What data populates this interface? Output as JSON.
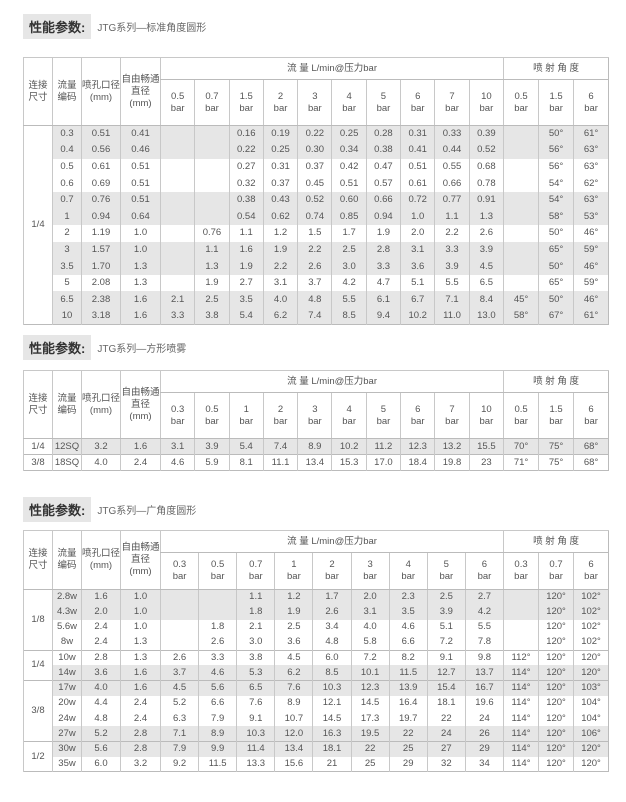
{
  "header_labels": {
    "conn": "连接尺寸",
    "code": "流量编码",
    "orifice": "喷孔口径(mm)",
    "free": "自由畅通直径(mm)",
    "flow": "流  量    L/min@压力bar",
    "angle": "喷 射 角 度",
    "unit": "bar"
  },
  "sections": [
    {
      "label": "性能参数:",
      "subtitle": "JTG系列—标准角度圆形",
      "flow_pressures": [
        "0.5",
        "0.7",
        "1.5",
        "2",
        "3",
        "4",
        "5",
        "6",
        "7",
        "10"
      ],
      "angle_pressures": [
        "0.5",
        "1.5",
        "6"
      ],
      "groups": [
        {
          "conn": "1/4",
          "rows": [
            {
              "shade": true,
              "cells": [
                "0.3",
                "0.51",
                "0.41",
                "",
                "",
                "0.16",
                "0.19",
                "0.22",
                "0.25",
                "0.28",
                "0.31",
                "0.33",
                "0.39",
                "",
                "50°",
                "61°"
              ]
            },
            {
              "shade": true,
              "cells": [
                "0.4",
                "0.56",
                "0.46",
                "",
                "",
                "0.22",
                "0.25",
                "0.30",
                "0.34",
                "0.38",
                "0.41",
                "0.44",
                "0.52",
                "",
                "56°",
                "63°"
              ]
            },
            {
              "shade": false,
              "cells": [
                "0.5",
                "0.61",
                "0.51",
                "",
                "",
                "0.27",
                "0.31",
                "0.37",
                "0.42",
                "0.47",
                "0.51",
                "0.55",
                "0.68",
                "",
                "56°",
                "63°"
              ]
            },
            {
              "shade": false,
              "cells": [
                "0.6",
                "0.69",
                "0.51",
                "",
                "",
                "0.32",
                "0.37",
                "0.45",
                "0.51",
                "0.57",
                "0.61",
                "0.66",
                "0.78",
                "",
                "54°",
                "62°"
              ]
            },
            {
              "shade": true,
              "cells": [
                "0.7",
                "0.76",
                "0.51",
                "",
                "",
                "0.38",
                "0.43",
                "0.52",
                "0.60",
                "0.66",
                "0.72",
                "0.77",
                "0.91",
                "",
                "54°",
                "63°"
              ]
            },
            {
              "shade": true,
              "cells": [
                "1",
                "0.94",
                "0.64",
                "",
                "",
                "0.54",
                "0.62",
                "0.74",
                "0.85",
                "0.94",
                "1.0",
                "1.1",
                "1.3",
                "",
                "58°",
                "53°"
              ]
            },
            {
              "shade": false,
              "cells": [
                "2",
                "1.19",
                "1.0",
                "",
                "0.76",
                "1.1",
                "1.2",
                "1.5",
                "1.7",
                "1.9",
                "2.0",
                "2.2",
                "2.6",
                "",
                "50°",
                "46°"
              ]
            },
            {
              "shade": true,
              "cells": [
                "3",
                "1.57",
                "1.0",
                "",
                "1.1",
                "1.6",
                "1.9",
                "2.2",
                "2.5",
                "2.8",
                "3.1",
                "3.3",
                "3.9",
                "",
                "65°",
                "59°"
              ]
            },
            {
              "shade": true,
              "cells": [
                "3.5",
                "1.70",
                "1.3",
                "",
                "1.3",
                "1.9",
                "2.2",
                "2.6",
                "3.0",
                "3.3",
                "3.6",
                "3.9",
                "4.5",
                "",
                "50°",
                "46°"
              ]
            },
            {
              "shade": false,
              "cells": [
                "5",
                "2.08",
                "1.3",
                "",
                "1.9",
                "2.7",
                "3.1",
                "3.7",
                "4.2",
                "4.7",
                "5.1",
                "5.5",
                "6.5",
                "",
                "65°",
                "59°"
              ]
            },
            {
              "shade": true,
              "cells": [
                "6.5",
                "2.38",
                "1.6",
                "2.1",
                "2.5",
                "3.5",
                "4.0",
                "4.8",
                "5.5",
                "6.1",
                "6.7",
                "7.1",
                "8.4",
                "45°",
                "50°",
                "46°"
              ]
            },
            {
              "shade": true,
              "cells": [
                "10",
                "3.18",
                "1.6",
                "3.3",
                "3.8",
                "5.4",
                "6.2",
                "7.4",
                "8.5",
                "9.4",
                "10.2",
                "11.0",
                "13.0",
                "58°",
                "67°",
                "61°"
              ]
            }
          ]
        }
      ]
    },
    {
      "label": "性能参数:",
      "subtitle": "JTG系列—方形喷雾",
      "flow_pressures": [
        "0.3",
        "0.5",
        "1",
        "2",
        "3",
        "4",
        "5",
        "6",
        "7",
        "10"
      ],
      "angle_pressures": [
        "0.5",
        "1.5",
        "6"
      ],
      "groups": [
        {
          "conn": "1/4",
          "rows": [
            {
              "shade": true,
              "cells": [
                "12SQ",
                "3.2",
                "1.6",
                "3.1",
                "3.9",
                "5.4",
                "7.4",
                "8.9",
                "10.2",
                "11.2",
                "12.3",
                "13.2",
                "15.5",
                "70°",
                "75°",
                "68°"
              ]
            }
          ]
        },
        {
          "conn": "3/8",
          "rows": [
            {
              "shade": false,
              "cells": [
                "18SQ",
                "4.0",
                "2.4",
                "4.6",
                "5.9",
                "8.1",
                "11.1",
                "13.4",
                "15.3",
                "17.0",
                "18.4",
                "19.8",
                "23",
                "71°",
                "75°",
                "68°"
              ]
            }
          ]
        }
      ]
    },
    {
      "label": "性能参数:",
      "subtitle": "JTG系列—广角度圆形",
      "flow_pressures": [
        "0.3",
        "0.5",
        "0.7",
        "1",
        "2",
        "3",
        "4",
        "5",
        "6"
      ],
      "angle_pressures": [
        "0.3",
        "0.7",
        "6"
      ],
      "groups": [
        {
          "conn": "1/8",
          "rows": [
            {
              "shade": true,
              "cells": [
                "2.8w",
                "1.6",
                "1.0",
                "",
                "",
                "1.1",
                "1.2",
                "1.7",
                "2.0",
                "2.3",
                "2.5",
                "2.7",
                "",
                "120°",
                "102°"
              ]
            },
            {
              "shade": true,
              "cells": [
                "4.3w",
                "2.0",
                "1.0",
                "",
                "",
                "1.8",
                "1.9",
                "2.6",
                "3.1",
                "3.5",
                "3.9",
                "4.2",
                "",
                "120°",
                "102°"
              ]
            },
            {
              "shade": false,
              "cells": [
                "5.6w",
                "2.4",
                "1.0",
                "",
                "1.8",
                "2.1",
                "2.5",
                "3.4",
                "4.0",
                "4.6",
                "5.1",
                "5.5",
                "",
                "120°",
                "102°"
              ]
            },
            {
              "shade": false,
              "cells": [
                "8w",
                "2.4",
                "1.3",
                "",
                "2.6",
                "3.0",
                "3.6",
                "4.8",
                "5.8",
                "6.6",
                "7.2",
                "7.8",
                "",
                "120°",
                "102°"
              ]
            }
          ]
        },
        {
          "conn": "1/4",
          "rows": [
            {
              "shade": false,
              "cells": [
                "10w",
                "2.8",
                "1.3",
                "2.6",
                "3.3",
                "3.8",
                "4.5",
                "6.0",
                "7.2",
                "8.2",
                "9.1",
                "9.8",
                "112°",
                "120°",
                "120°"
              ]
            },
            {
              "shade": true,
              "cells": [
                "14w",
                "3.6",
                "1.6",
                "3.7",
                "4.6",
                "5.3",
                "6.2",
                "8.5",
                "10.1",
                "11.5",
                "12.7",
                "13.7",
                "114°",
                "120°",
                "120°"
              ]
            }
          ]
        },
        {
          "conn": "3/8",
          "rows": [
            {
              "shade": true,
              "cells": [
                "17w",
                "4.0",
                "1.6",
                "4.5",
                "5.6",
                "6.5",
                "7.6",
                "10.3",
                "12.3",
                "13.9",
                "15.4",
                "16.7",
                "114°",
                "120°",
                "103°"
              ]
            },
            {
              "shade": false,
              "cells": [
                "20w",
                "4.4",
                "2.4",
                "5.2",
                "6.6",
                "7.6",
                "8.9",
                "12.1",
                "14.5",
                "16.4",
                "18.1",
                "19.6",
                "114°",
                "120°",
                "104°"
              ]
            },
            {
              "shade": false,
              "cells": [
                "24w",
                "4.8",
                "2.4",
                "6.3",
                "7.9",
                "9.1",
                "10.7",
                "14.5",
                "17.3",
                "19.7",
                "22",
                "24",
                "114°",
                "120°",
                "104°"
              ]
            },
            {
              "shade": true,
              "cells": [
                "27w",
                "5.2",
                "2.8",
                "7.1",
                "8.9",
                "10.3",
                "12.0",
                "16.3",
                "19.5",
                "22",
                "24",
                "26",
                "114°",
                "120°",
                "106°"
              ]
            }
          ]
        },
        {
          "conn": "1/2",
          "rows": [
            {
              "shade": true,
              "cells": [
                "30w",
                "5.6",
                "2.8",
                "7.9",
                "9.9",
                "11.4",
                "13.4",
                "18.1",
                "22",
                "25",
                "27",
                "29",
                "114°",
                "120°",
                "120°"
              ]
            },
            {
              "shade": false,
              "cells": [
                "35w",
                "6.0",
                "3.2",
                "9.2",
                "11.5",
                "13.3",
                "15.6",
                "21",
                "25",
                "29",
                "32",
                "34",
                "114°",
                "120°",
                "120°"
              ]
            }
          ]
        }
      ]
    }
  ]
}
